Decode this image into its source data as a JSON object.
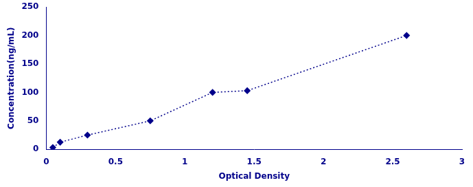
{
  "chart_data": {
    "type": "line",
    "x": [
      0.047,
      0.1,
      0.297,
      0.75,
      1.2,
      1.45,
      2.6
    ],
    "values": [
      3.125,
      12.5,
      25,
      50,
      100,
      103,
      200
    ],
    "color": "#00008B",
    "marker": "diamond",
    "line_style": "dotted",
    "xlabel": "Optical Density",
    "ylabel": "Concentration(ng/mL)",
    "xlim": [
      0,
      3
    ],
    "ylim": [
      0,
      250
    ],
    "xticks": [
      0,
      0.5,
      1,
      1.5,
      2,
      2.5,
      3
    ],
    "yticks": [
      0,
      50,
      100,
      150,
      200,
      250
    ],
    "grid": false
  }
}
